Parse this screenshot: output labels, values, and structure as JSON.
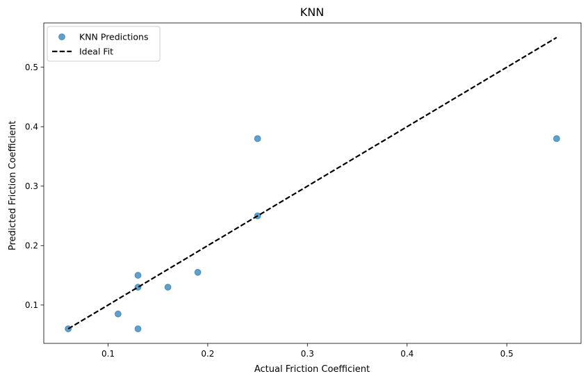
{
  "chart_data": {
    "type": "scatter",
    "title": "KNN",
    "xlabel": "Actual Friction Coefficient",
    "ylabel": "Predicted Friction Coefficient",
    "xlim": [
      0.0355,
      0.5745
    ],
    "ylim": [
      0.0355,
      0.5745
    ],
    "x_ticks": [
      0.1,
      0.2,
      0.3,
      0.4,
      0.5
    ],
    "y_ticks": [
      0.1,
      0.2,
      0.3,
      0.4,
      0.5
    ],
    "x_tick_labels": [
      "0.1",
      "0.2",
      "0.3",
      "0.4",
      "0.5"
    ],
    "y_tick_labels": [
      "0.1",
      "0.2",
      "0.3",
      "0.4",
      "0.5"
    ],
    "grid": false,
    "legend_position": "top-left",
    "series": [
      {
        "name": "KNN Predictions",
        "kind": "scatter",
        "color": "#1f77b4",
        "alpha": 0.7,
        "points": [
          {
            "x": 0.06,
            "y": 0.06
          },
          {
            "x": 0.11,
            "y": 0.085
          },
          {
            "x": 0.13,
            "y": 0.06
          },
          {
            "x": 0.13,
            "y": 0.13
          },
          {
            "x": 0.13,
            "y": 0.15
          },
          {
            "x": 0.16,
            "y": 0.13
          },
          {
            "x": 0.19,
            "y": 0.155
          },
          {
            "x": 0.25,
            "y": 0.25
          },
          {
            "x": 0.25,
            "y": 0.38
          },
          {
            "x": 0.55,
            "y": 0.38
          }
        ]
      },
      {
        "name": "Ideal Fit",
        "kind": "line",
        "color": "#000000",
        "dashed": true,
        "points": [
          {
            "x": 0.06,
            "y": 0.06
          },
          {
            "x": 0.55,
            "y": 0.55
          }
        ]
      }
    ]
  }
}
